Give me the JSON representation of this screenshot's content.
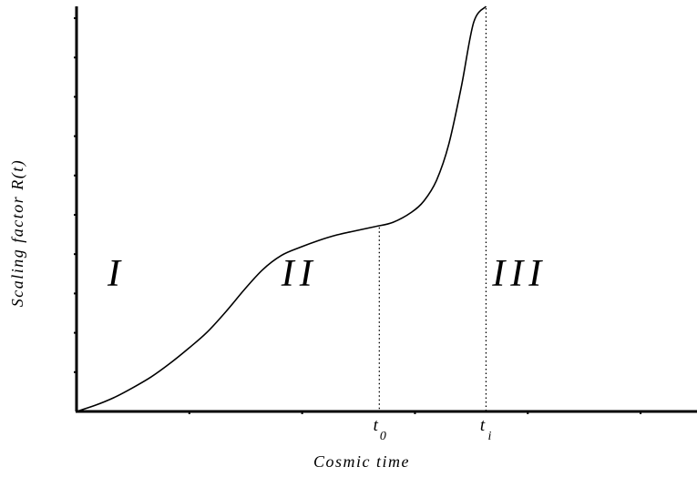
{
  "chart_data": {
    "type": "line",
    "title": "",
    "xlabel": "Cosmic time",
    "ylabel": "Scaling factor R(t)",
    "grid": false,
    "legend": "none",
    "series": [
      {
        "x": [
          0,
          3,
          6,
          9,
          12,
          15,
          18,
          21,
          24,
          27,
          30,
          33,
          36,
          39,
          42,
          45,
          48,
          51,
          54,
          56,
          58,
          60,
          62,
          64,
          66
        ],
        "y": [
          0,
          1.5,
          3.4,
          5.8,
          8.5,
          11.8,
          15.5,
          19.5,
          24.5,
          30,
          35,
          38.5,
          40.5,
          42.2,
          43.6,
          44.6,
          45.6,
          46.7,
          49.2,
          52,
          57,
          66,
          80,
          96,
          100
        ]
      }
    ],
    "xlim": [
      0,
      100
    ],
    "ylim": [
      0,
      100
    ],
    "regions": [
      {
        "label": "I",
        "x": 5,
        "y": 31
      },
      {
        "label": "II",
        "x": 33,
        "y": 31
      },
      {
        "label": "III",
        "x": 67,
        "y": 31
      }
    ],
    "markers": [
      {
        "label": "t",
        "sub": "0",
        "x": 48.8
      },
      {
        "label": "t",
        "sub": "i",
        "x": 66
      }
    ]
  }
}
